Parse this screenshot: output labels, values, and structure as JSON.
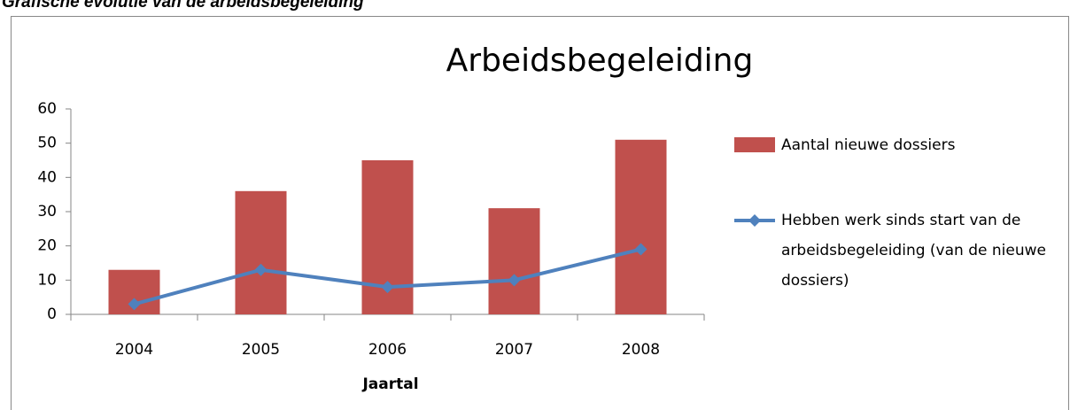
{
  "caption": "Grafische evolutie van de arbeidsbegeleiding",
  "chart_data": {
    "type": "bar-line",
    "title": "Arbeidsbegeleiding",
    "x_label": "Jaartal",
    "categories": [
      "2004",
      "2005",
      "2006",
      "2007",
      "2008"
    ],
    "series": [
      {
        "name": "Aantal nieuwe dossiers",
        "type": "bar",
        "color": "#c0504d",
        "values": [
          13,
          36,
          45,
          31,
          51
        ]
      },
      {
        "name": "Hebben werk sinds start van de arbeidsbegeleiding (van de nieuwe dossiers)",
        "type": "line",
        "color": "#4f81bd",
        "values": [
          3,
          13,
          8,
          10,
          19
        ]
      }
    ],
    "ylim": [
      0,
      60
    ],
    "yticks": [
      0,
      10,
      20,
      30,
      40,
      50,
      60
    ],
    "legend": "right"
  }
}
